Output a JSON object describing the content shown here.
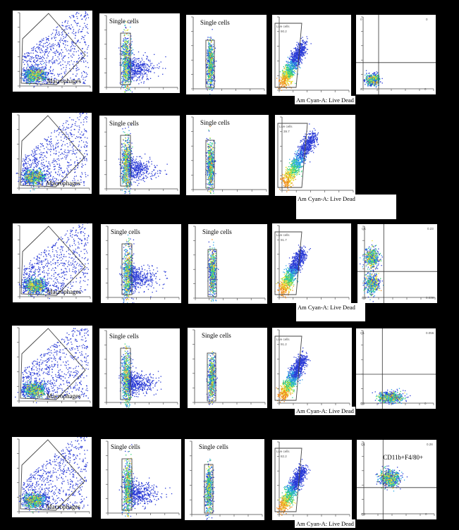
{
  "colors": {
    "background": "#000000",
    "panel": "#ffffff",
    "gate": "#444444"
  },
  "gate_labels": {
    "macrophages": "Macrophages",
    "single_cells": "Single cells",
    "live_cells": "Live cells",
    "cd11b_f4_80": "CD11b+F4/80+"
  },
  "caption": "Am Cyan-A: Live Dead",
  "chart_data": [
    {
      "row": 1,
      "type": "scatter",
      "title": "",
      "panels": [
        {
          "kind": "macrophages",
          "gate_label": "Macrophages"
        },
        {
          "kind": "single_a",
          "gate_label": "Single cells"
        },
        {
          "kind": "single_b",
          "gate_label": "Single cells"
        },
        {
          "kind": "live",
          "gate_label": "Live cells",
          "value": "90.2"
        },
        {
          "kind": "quad",
          "pattern": "corner",
          "quadrant_values": [
            "0",
            "0",
            "0",
            "0"
          ]
        }
      ]
    },
    {
      "row": 2,
      "type": "scatter",
      "title": "",
      "panels": [
        {
          "kind": "macrophages",
          "gate_label": "Macrophages"
        },
        {
          "kind": "single_a",
          "gate_label": "Single cells"
        },
        {
          "kind": "single_b",
          "gate_label": "Single cells"
        },
        {
          "kind": "live_wide",
          "gate_label": "Live cells",
          "value": "39.7"
        }
      ]
    },
    {
      "row": 3,
      "type": "scatter",
      "title": "",
      "panels": [
        {
          "kind": "macrophages",
          "gate_label": "Macrophages"
        },
        {
          "kind": "single_a",
          "gate_label": "Single cells"
        },
        {
          "kind": "single_b",
          "gate_label": "Single cells"
        },
        {
          "kind": "live",
          "gate_label": "Live cells",
          "value": "91.7"
        },
        {
          "kind": "quad",
          "pattern": "double",
          "quadrant_values": [
            "Q1",
            "0.23",
            "Q4",
            "0.036"
          ]
        }
      ]
    },
    {
      "row": 4,
      "type": "scatter",
      "title": "",
      "panels": [
        {
          "kind": "macrophages",
          "gate_label": "Macrophages"
        },
        {
          "kind": "single_a",
          "gate_label": "Single cells"
        },
        {
          "kind": "single_b",
          "gate_label": "Single cells"
        },
        {
          "kind": "live",
          "gate_label": "Live cells",
          "value": "91.2"
        },
        {
          "kind": "quad",
          "pattern": "bottom",
          "quadrant_values": [
            "Q1",
            "0.056",
            "Q4",
            "0"
          ]
        }
      ]
    },
    {
      "row": 5,
      "type": "scatter",
      "title": "",
      "panels": [
        {
          "kind": "macrophages",
          "gate_label": "Macrophages"
        },
        {
          "kind": "single_a",
          "gate_label": "Single cells"
        },
        {
          "kind": "single_b",
          "gate_label": "Single cells"
        },
        {
          "kind": "live",
          "gate_label": "Live cells",
          "value": "82.2"
        },
        {
          "kind": "quad",
          "pattern": "center",
          "gate_label": "CD11b+F4/80+",
          "quadrant_values": [
            "Q1",
            "0.28",
            "Q4",
            "0"
          ]
        }
      ]
    }
  ]
}
